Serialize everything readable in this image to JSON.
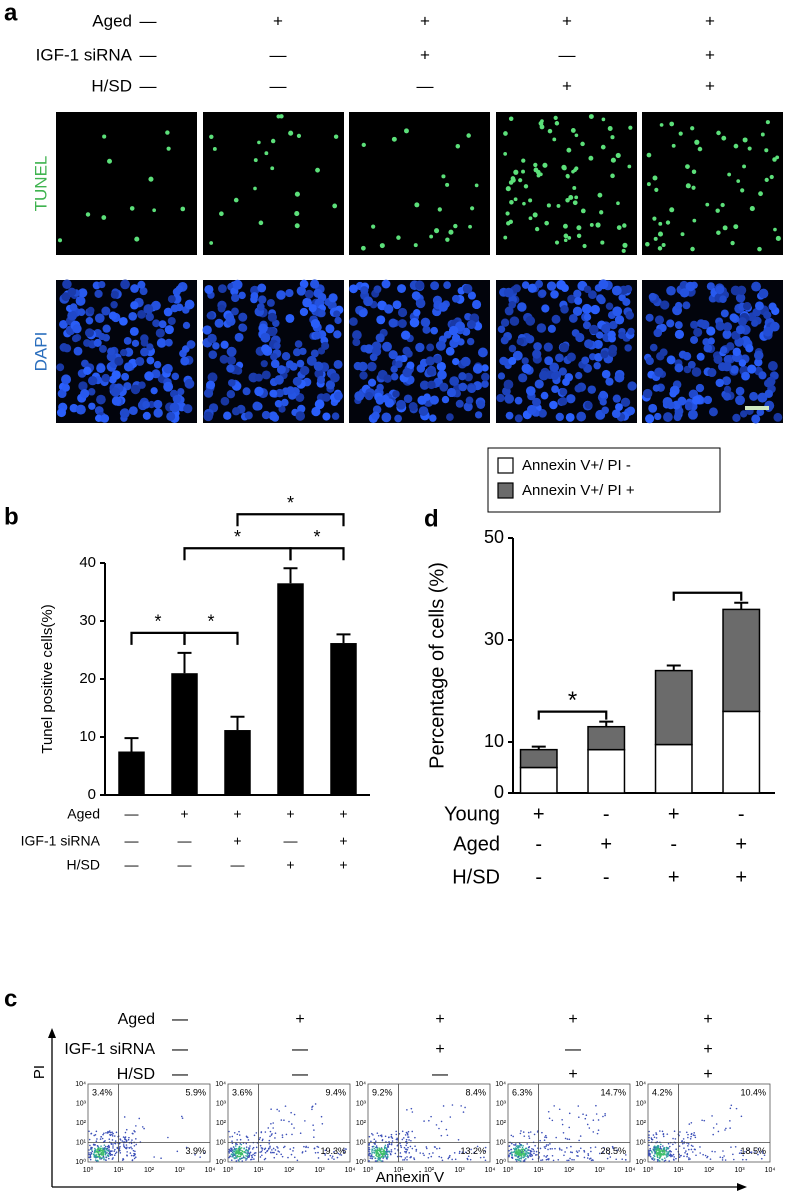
{
  "panel_a": {
    "label": "a",
    "conditions": [
      {
        "name": "Aged",
        "signs": [
          "—",
          "+",
          "+",
          "+",
          "+"
        ]
      },
      {
        "name": "IGF-1 siRNA",
        "signs": [
          "—",
          "—",
          "+",
          "—",
          "+"
        ]
      },
      {
        "name": "H/SD",
        "signs": [
          "—",
          "—",
          "—",
          "+",
          "+"
        ]
      }
    ],
    "rows": [
      "TUNEL",
      "DAPI"
    ]
  },
  "chart_data": [
    {
      "type": "bar",
      "label": "b",
      "ylabel": "Tunel positive cells(%)",
      "categories": [
        null,
        null,
        null,
        null,
        null
      ],
      "values": [
        7.5,
        21,
        11.2,
        36.5,
        26.2
      ],
      "errors": [
        2.3,
        3.5,
        2.3,
        2.6,
        1.5
      ],
      "color": "#000000",
      "ylim": [
        0,
        40
      ],
      "yticks": [
        0,
        10,
        20,
        30,
        40
      ],
      "conditions": [
        {
          "name": "Aged",
          "signs": [
            "—",
            "+",
            "+",
            "+",
            "+"
          ]
        },
        {
          "name": "IGF-1 siRNA",
          "signs": [
            "—",
            "—",
            "+",
            "—",
            "+"
          ]
        },
        {
          "name": "H/SD",
          "signs": [
            "—",
            "—",
            "—",
            "+",
            "+"
          ]
        }
      ],
      "brackets": [
        {
          "from": 0,
          "to": 1,
          "label": "*"
        },
        {
          "from": 1,
          "to": 2,
          "label": "*"
        },
        {
          "from": 1,
          "to": 3,
          "label": "*"
        },
        {
          "from": 3,
          "to": 4,
          "label": "*"
        },
        {
          "from": 2,
          "to": 4,
          "label": "*"
        }
      ]
    },
    {
      "type": "stacked_bar",
      "label": "d",
      "ylabel": "Percentage of  cells (%)",
      "categories": [
        null,
        null,
        null,
        null
      ],
      "series": [
        {
          "name": "Annexin V+/ PI -",
          "color": "#ffffff",
          "values": [
            5,
            8.5,
            9.5,
            16
          ]
        },
        {
          "name": "Annexin V+/ PI +",
          "color": "#6b6b6b",
          "values": [
            3.5,
            4.5,
            14.5,
            20
          ],
          "errors": [
            0.6,
            1,
            1,
            1.3
          ]
        }
      ],
      "ylim": [
        0,
        50
      ],
      "yticks": [
        0,
        10,
        30,
        50
      ],
      "conditions": [
        {
          "name": "Young",
          "signs": [
            "+",
            "-",
            "+",
            "-"
          ]
        },
        {
          "name": "Aged",
          "signs": [
            "-",
            "+",
            "-",
            "+"
          ]
        },
        {
          "name": "H/SD",
          "signs": [
            "-",
            "-",
            "+",
            "+"
          ]
        }
      ],
      "brackets": [
        {
          "from": 0,
          "to": 1,
          "label": "*"
        },
        {
          "from": 2,
          "to": 3
        }
      ]
    }
  ],
  "panel_c": {
    "label": "c",
    "conditions": [
      {
        "name": "Aged",
        "signs": [
          "—",
          "+",
          "+",
          "+",
          "+"
        ]
      },
      {
        "name": "IGF-1 siRNA",
        "signs": [
          "—",
          "—",
          "+",
          "—",
          "+"
        ]
      },
      {
        "name": "H/SD",
        "signs": [
          "—",
          "—",
          "—",
          "+",
          "+"
        ]
      }
    ],
    "ticks": [
      "10⁰",
      "10¹",
      "10²",
      "10³",
      "10⁴"
    ],
    "plots": [
      {
        "ul": "3.4%",
        "ur": "5.9%",
        "lr": "3.9%"
      },
      {
        "ul": "3.6%",
        "ur": "9.4%",
        "lr": "19.3%"
      },
      {
        "ul": "9.2%",
        "ur": "8.4%",
        "lr": "13.2%"
      },
      {
        "ul": "6.3%",
        "ur": "14.7%",
        "lr": "28.5%"
      },
      {
        "ul": "4.2%",
        "ur": "10.4%",
        "lr": "18.5%"
      }
    ],
    "xlabel": "Annexin V",
    "ylabel": "PI"
  }
}
